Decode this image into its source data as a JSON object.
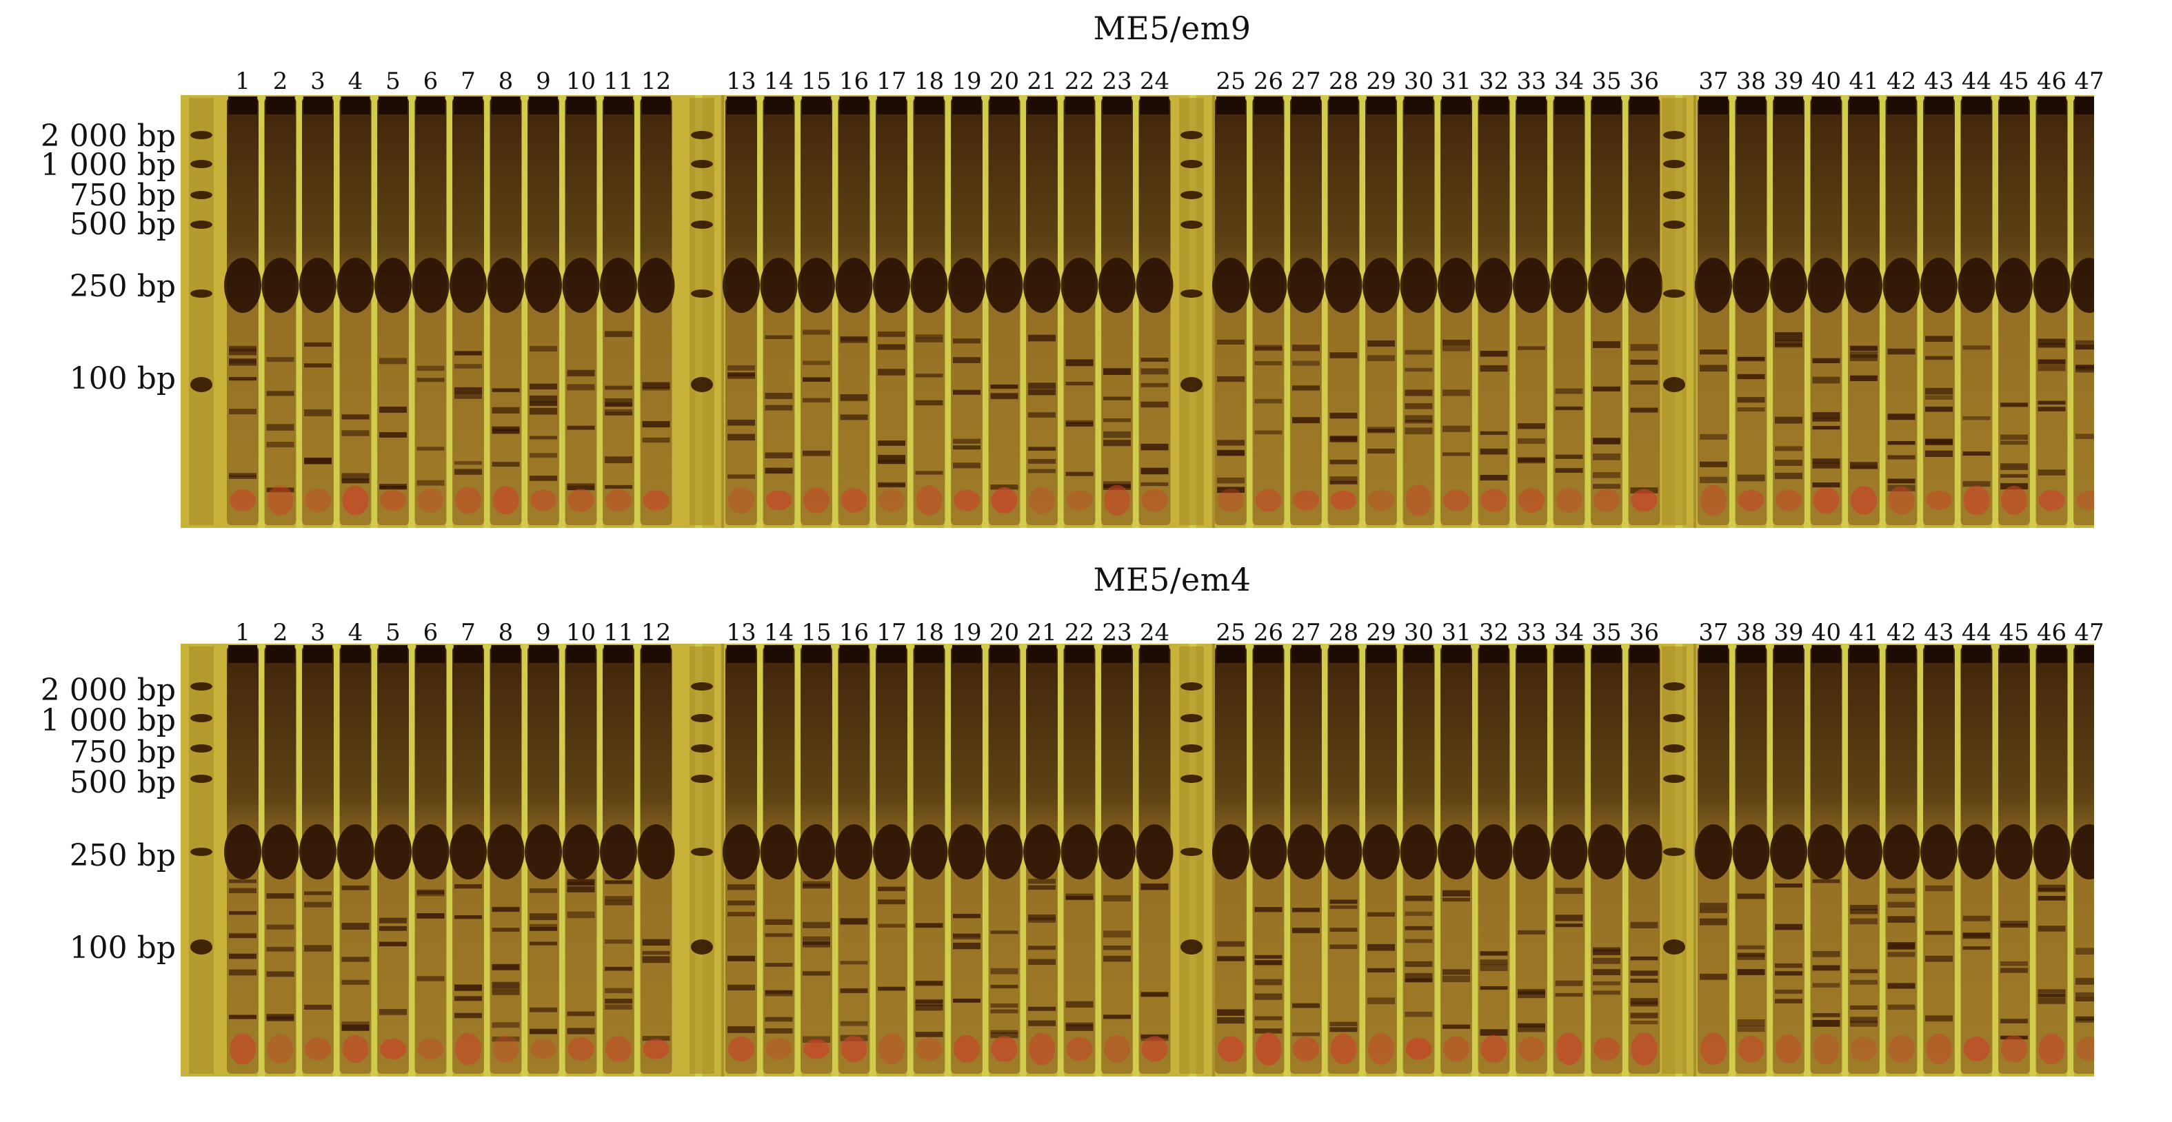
{
  "panels": [
    {
      "title": "ME5/em9",
      "lane_numbers": [
        "1",
        "2",
        "3",
        "4",
        "5",
        "6",
        "7",
        "8",
        "9",
        "10",
        "11",
        "12",
        "13",
        "14",
        "15",
        "16",
        "17",
        "18",
        "19",
        "20",
        "21",
        "22",
        "23",
        "24",
        "25",
        "26",
        "27",
        "28",
        "29",
        "30",
        "31",
        "32",
        "33",
        "34",
        "35",
        "36",
        "37",
        "38",
        "39",
        "40",
        "41",
        "42",
        "43",
        "44",
        "45",
        "46",
        "47"
      ],
      "size_labels": [
        "2 000 bp",
        "1 000 bp",
        "750 bp",
        "500 bp",
        "250 bp",
        "100 bp"
      ]
    },
    {
      "title": "ME5/em4",
      "lane_numbers": [
        "1",
        "2",
        "3",
        "4",
        "5",
        "6",
        "7",
        "8",
        "9",
        "10",
        "11",
        "12",
        "13",
        "14",
        "15",
        "16",
        "17",
        "18",
        "19",
        "20",
        "21",
        "22",
        "23",
        "24",
        "25",
        "26",
        "27",
        "28",
        "29",
        "30",
        "31",
        "32",
        "33",
        "34",
        "35",
        "36",
        "37",
        "38",
        "39",
        "40",
        "41",
        "42",
        "43",
        "44",
        "45",
        "46",
        "47"
      ],
      "size_labels": [
        "2 000 bp",
        "1 000 bp",
        "750 bp",
        "500 bp",
        "250 bp",
        "100 bp"
      ]
    }
  ],
  "colors": {
    "gel_background": "#c9b23a",
    "gel_edge": "#a8922a",
    "lane_dark": "#3a1d08",
    "band_light": "#6b3a12",
    "band_red": "#c8442a",
    "highlight": "#d7e25a"
  }
}
